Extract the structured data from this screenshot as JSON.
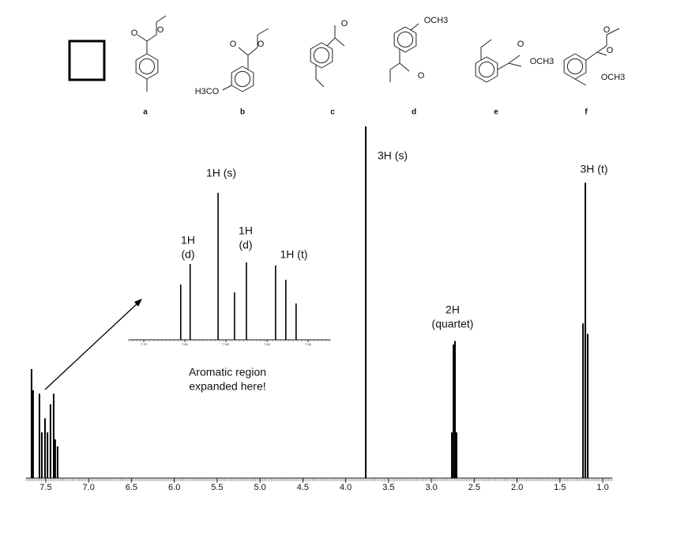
{
  "chart_data": [
    {
      "type": "spectrum",
      "xlim": [
        7.73,
        0.89
      ],
      "ylim": [
        0,
        100
      ],
      "xticks": [
        7.5,
        {
          "value": 7.0,
          "label": "7.0"
        },
        6.5,
        {
          "value": 6.0,
          "label": "6.0"
        },
        5.5,
        {
          "value": 5.0,
          "label": "5.0"
        },
        4.5,
        {
          "value": 4.0,
          "label": "4.0"
        },
        3.5,
        {
          "value": 3.0,
          "label": "3.0"
        },
        2.5,
        {
          "value": 2.0,
          "label": "2.0"
        },
        1.5,
        {
          "value": 1.0,
          "label": "1.0"
        }
      ],
      "color": "#000000",
      "series": [
        {
          "x": [
            7.666,
            7.648,
            7.574,
            7.546,
            7.509,
            7.48,
            7.445,
            7.408,
            7.39,
            7.362
          ],
          "values": [
            31,
            25,
            24,
            13,
            17,
            13,
            21,
            24,
            11,
            9
          ]
        },
        {
          "x": [
            3.766
          ],
          "values": [
            100
          ]
        },
        {
          "x": [
            2.761,
            2.742,
            2.724,
            2.706
          ],
          "values": [
            13,
            38,
            39,
            13
          ]
        },
        {
          "x": [
            1.23,
            1.203,
            1.175
          ],
          "values": [
            44,
            84,
            41
          ]
        }
      ],
      "annotations": [
        [
          "3H (s)"
        ],
        [
          "3H (t)"
        ],
        [
          "2H",
          "(quartet)"
        ],
        [
          "Aromatic region",
          "expanded here!"
        ]
      ]
    },
    {
      "type": "spectrum",
      "xlim": [
        7.7365,
        7.246
      ],
      "ylim": [
        0,
        100
      ],
      "xticks": [
        {
          "value": 7.7,
          "label": "7.70"
        },
        {
          "value": 7.6,
          "label": "7.60"
        },
        {
          "value": 7.5,
          "label": "7.50"
        },
        {
          "value": 7.4,
          "label": "7.40"
        },
        {
          "value": 7.3,
          "label": "7.30"
        }
      ],
      "color": "#000000",
      "series": [
        {
          "x": [
            7.61,
            7.587,
            7.519,
            7.479,
            7.45,
            7.379,
            7.354,
            7.329
          ],
          "values": [
            35,
            48,
            93,
            30,
            49,
            47,
            38,
            23
          ]
        }
      ],
      "annotations": [
        [
          "1H (s)"
        ],
        [
          "1H",
          "(d)"
        ],
        [
          "1H",
          "(d)"
        ],
        [
          "1H (t)"
        ]
      ]
    }
  ],
  "structures": [
    {
      "label": "a",
      "atoms": [
        "O",
        "O"
      ]
    },
    {
      "label": "b",
      "atoms": [
        "O",
        "O",
        "H3CO"
      ]
    },
    {
      "label": "c",
      "atoms": [
        "O"
      ]
    },
    {
      "label": "d",
      "atoms": [
        "OCH3",
        "O"
      ]
    },
    {
      "label": "e",
      "atoms": [
        "O",
        "OCH3"
      ]
    },
    {
      "label": "f",
      "atoms": [
        "O",
        "O",
        "OCH3"
      ]
    }
  ]
}
